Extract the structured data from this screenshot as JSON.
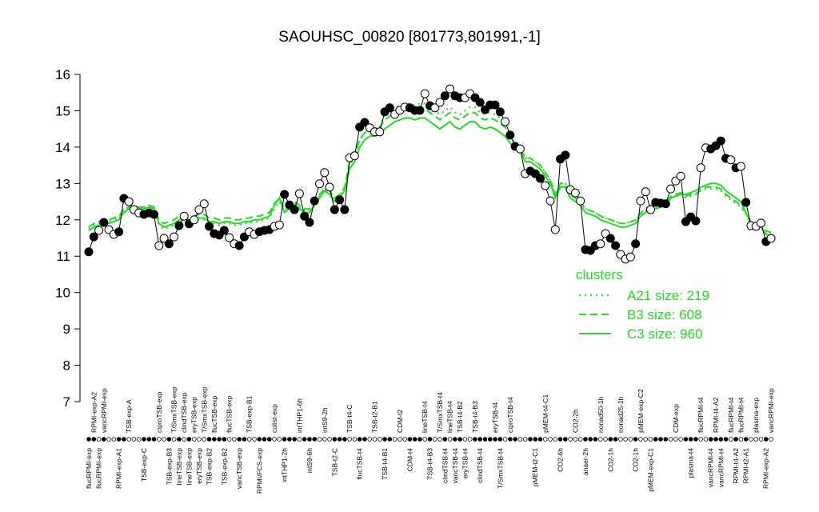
{
  "chart_data": {
    "type": "line",
    "title": "SAOUHSC_00820 [801773,801991,-1]",
    "ylim": [
      7,
      16
    ],
    "yticks": [
      7,
      8,
      9,
      10,
      11,
      12,
      13,
      14,
      15,
      16
    ],
    "legend": "right",
    "legend_title": "clusters",
    "legend_color": "#22dd22",
    "categories": [
      "flucRPMI-exp",
      "RPMI-exp-A2",
      "flucRPMI-exp",
      "vancRPMI-exp",
      null,
      null,
      "RPMI-exp-A1",
      null,
      "TSB-exp-A",
      null,
      null,
      "TSB-exp-C",
      null,
      null,
      "ciproTSB-exp",
      null,
      "TSB-exp-B3",
      "T/SmxTSB-exp",
      "lineTSB-exp",
      "clindTSB-exp",
      "lineTSB-exp",
      "eryTSB-exp",
      "eryTSB-exp",
      "T/SmxTSB-exp",
      "TSB-exp-B2",
      "flucTSB-exp",
      null,
      "TSB-exp-B2",
      "flucTSB-exp",
      null,
      "vancTSB-exp",
      null,
      "TSB-exp-B1",
      null,
      "RPMI/FCS-exp",
      null,
      null,
      "colist-exp",
      null,
      "intTHP1-2h",
      null,
      null,
      "intTHP1-6h",
      null,
      "intS9-6h",
      null,
      null,
      "intS9-2h",
      null,
      "TSB-t2-C",
      null,
      null,
      "TSB-t4-C",
      null,
      "flucTSB-t4",
      null,
      null,
      "TSB-t2-B1",
      null,
      "TSB-t4-B1",
      null,
      null,
      "CDM-t2",
      null,
      "CDM-t4",
      null,
      null,
      "lineTSB-t4",
      "TSB-t4-B3",
      null,
      "T/SmxTSB-t4",
      "clindTSB-t4",
      "lineTSB-t4",
      "vancTSB-t4",
      "TSB-t4-B2",
      "eryTSB-t4",
      null,
      "TSB-t4-B3",
      "clindTSB-t4",
      null,
      null,
      "eryTSB-t4",
      "T/SmxTSB-t4",
      null,
      "ciproTSB-t4",
      null,
      null,
      null,
      null,
      "pMEM-t2-C1",
      null,
      "pMEM-t4-C1",
      null,
      null,
      "CO2-6h",
      null,
      null,
      "CO2-2h",
      null,
      "anaer-2h",
      null,
      null,
      "nonad50-1h",
      null,
      "CO2-1h",
      null,
      "nonad25-1h",
      null,
      null,
      "CO2-1h",
      "pMEM-exp-C2",
      null,
      "pMEM-exp-C1",
      null,
      null,
      null,
      null,
      "CDM-exp",
      null,
      null,
      "plasma-t4",
      null,
      "flucRPMI-t4",
      null,
      "vancRPMI-t4",
      "RPMI-t4-A2",
      "vancRPMI-t4",
      null,
      "flucRPMI-t4",
      "RPMI-t4-A2",
      "flucRPMI-t4",
      "RPMI-t2-A1",
      null,
      "plasma-exp",
      null,
      "RPMI-exp-A2",
      "vancRPMI-exp"
    ],
    "series": [
      {
        "color": "#000000",
        "style": "points-line",
        "values": [
          11.12,
          11.53,
          11.71,
          11.93,
          11.73,
          11.6,
          11.67,
          12.59,
          12.5,
          12.28,
          12.19,
          12.15,
          12.19,
          12.15,
          11.29,
          11.49,
          11.34,
          11.53,
          11.84,
          12.1,
          11.89,
          12.0,
          12.28,
          12.44,
          11.82,
          11.62,
          11.58,
          11.71,
          11.51,
          11.34,
          11.29,
          11.53,
          11.67,
          11.6,
          11.67,
          11.71,
          11.73,
          11.82,
          11.86,
          12.7,
          12.41,
          12.28,
          12.72,
          12.1,
          11.93,
          12.52,
          12.99,
          13.3,
          12.9,
          12.28,
          12.55,
          12.28,
          13.71,
          13.76,
          14.55,
          14.68,
          14.53,
          14.42,
          14.42,
          14.97,
          15.08,
          14.9,
          15.01,
          15.1,
          15.08,
          15.01,
          15.01,
          15.47,
          15.14,
          15.08,
          15.23,
          15.41,
          15.6,
          15.41,
          15.36,
          15.36,
          15.47,
          15.36,
          15.23,
          15.03,
          15.16,
          15.16,
          14.97,
          14.7,
          14.33,
          14.02,
          13.95,
          13.27,
          13.34,
          13.27,
          13.14,
          12.94,
          12.52,
          11.73,
          13.67,
          13.78,
          12.83,
          12.74,
          12.52,
          11.18,
          11.16,
          11.29,
          11.34,
          11.62,
          11.49,
          11.29,
          11.05,
          10.92,
          10.98,
          11.34,
          12.52,
          12.77,
          12.28,
          12.48,
          12.46,
          12.44,
          12.85,
          13.07,
          13.2,
          11.95,
          12.08,
          11.97,
          13.43,
          13.98,
          13.95,
          14.04,
          14.17,
          13.69,
          13.65,
          13.43,
          13.47,
          12.48,
          11.84,
          11.82,
          11.91,
          11.4,
          11.49
        ],
        "filled": [
          1,
          1,
          0,
          1,
          0,
          0,
          1,
          1,
          0,
          0,
          0,
          1,
          1,
          1,
          0,
          0,
          1,
          0,
          1,
          0,
          1,
          0,
          0,
          0,
          1,
          1,
          1,
          1,
          0,
          0,
          1,
          1,
          0,
          0,
          1,
          1,
          1,
          0,
          0,
          1,
          1,
          1,
          0,
          1,
          1,
          1,
          0,
          0,
          0,
          1,
          1,
          1,
          0,
          0,
          1,
          1,
          0,
          0,
          0,
          1,
          1,
          0,
          0,
          0,
          1,
          1,
          1,
          0,
          1,
          0,
          0,
          1,
          0,
          1,
          1,
          0,
          0,
          1,
          1,
          1,
          1,
          1,
          1,
          0,
          1,
          1,
          0,
          0,
          1,
          1,
          1,
          0,
          0,
          0,
          1,
          1,
          0,
          0,
          0,
          1,
          1,
          1,
          0,
          0,
          1,
          1,
          0,
          0,
          0,
          1,
          0,
          0,
          0,
          1,
          1,
          1,
          0,
          0,
          0,
          1,
          1,
          1,
          0,
          0,
          1,
          1,
          1,
          1,
          0,
          1,
          0,
          1,
          0,
          0,
          0,
          1,
          0
        ]
      },
      {
        "name": "A21 size: 219",
        "color": "#22dd22",
        "style": "dotted",
        "values": [
          11.75,
          11.85,
          11.9,
          11.95,
          11.95,
          12.0,
          12.05,
          12.25,
          12.35,
          12.35,
          12.35,
          12.35,
          12.4,
          12.35,
          11.85,
          11.75,
          11.8,
          11.85,
          11.95,
          12.0,
          11.95,
          11.95,
          12.0,
          12.0,
          11.9,
          11.9,
          11.85,
          11.9,
          11.9,
          11.85,
          11.85,
          11.9,
          11.9,
          11.95,
          11.95,
          12.0,
          12.05,
          12.3,
          12.5,
          12.25,
          12.35,
          12.45,
          12.35,
          12.25,
          12.25,
          12.45,
          12.65,
          12.85,
          12.75,
          12.55,
          12.65,
          12.85,
          13.5,
          13.7,
          14.2,
          14.4,
          14.5,
          14.5,
          14.55,
          14.9,
          15.0,
          15.1,
          15.15,
          15.2,
          15.2,
          15.15,
          15.2,
          15.2,
          15.1,
          15.0,
          14.9,
          15.0,
          15.1,
          14.95,
          14.9,
          15.0,
          15.1,
          15.1,
          14.95,
          14.9,
          14.95,
          14.9,
          14.8,
          14.65,
          14.35,
          14.1,
          14.0,
          13.7,
          13.7,
          13.6,
          13.5,
          13.3,
          13.1,
          12.7,
          13.0,
          13.0,
          12.7,
          12.6,
          12.5,
          12.3,
          12.25,
          12.2,
          12.1,
          12.05,
          12.0,
          11.95,
          11.9,
          11.9,
          11.95,
          12.0,
          12.15,
          12.25,
          12.35,
          12.35,
          12.4,
          12.45,
          12.6,
          12.65,
          12.7,
          12.6,
          12.65,
          12.7,
          12.8,
          12.85,
          12.85,
          12.85,
          12.8,
          12.65,
          12.55,
          12.45,
          12.35,
          12.15,
          11.9,
          11.85,
          11.8,
          11.65,
          11.6
        ]
      },
      {
        "name": "B3 size: 608",
        "color": "#22dd22",
        "style": "dashed",
        "values": [
          11.8,
          11.9,
          11.95,
          12.0,
          12.0,
          12.05,
          12.1,
          12.3,
          12.35,
          12.35,
          12.35,
          12.35,
          12.4,
          12.35,
          12.0,
          11.9,
          11.95,
          12.0,
          12.1,
          12.15,
          12.1,
          12.1,
          12.15,
          12.15,
          12.05,
          12.05,
          12.0,
          12.05,
          12.05,
          12.0,
          12.0,
          12.05,
          12.05,
          12.1,
          12.1,
          12.15,
          12.2,
          12.45,
          12.6,
          12.3,
          12.4,
          12.5,
          12.4,
          12.3,
          12.3,
          12.5,
          12.7,
          12.85,
          12.8,
          12.6,
          12.7,
          12.9,
          13.6,
          13.8,
          14.2,
          14.4,
          14.5,
          14.5,
          14.55,
          14.75,
          14.85,
          14.95,
          15.0,
          15.05,
          15.05,
          15.0,
          15.05,
          15.05,
          14.95,
          14.85,
          14.75,
          14.85,
          14.95,
          14.8,
          14.75,
          14.85,
          14.95,
          14.95,
          14.8,
          14.75,
          14.8,
          14.75,
          14.65,
          14.55,
          14.3,
          14.1,
          14.0,
          13.7,
          13.7,
          13.6,
          13.5,
          13.3,
          13.1,
          12.7,
          13.0,
          13.0,
          12.7,
          12.6,
          12.5,
          12.3,
          12.25,
          12.2,
          12.1,
          12.05,
          12.0,
          11.95,
          11.9,
          11.9,
          11.95,
          12.0,
          12.2,
          12.3,
          12.4,
          12.4,
          12.45,
          12.5,
          12.65,
          12.7,
          12.75,
          12.65,
          12.7,
          12.7,
          12.85,
          12.9,
          12.9,
          12.9,
          12.85,
          12.7,
          12.6,
          12.5,
          12.4,
          12.2,
          11.95,
          11.9,
          11.85,
          11.7,
          11.65
        ]
      },
      {
        "name": "C3 size: 960",
        "color": "#22dd22",
        "style": "solid",
        "values": [
          11.7,
          11.8,
          11.85,
          11.9,
          11.9,
          11.95,
          12.0,
          12.2,
          12.3,
          12.3,
          12.3,
          12.3,
          12.35,
          12.3,
          11.9,
          11.8,
          11.85,
          11.9,
          12.0,
          12.05,
          12.0,
          12.0,
          12.05,
          12.05,
          11.95,
          11.95,
          11.9,
          11.95,
          11.95,
          11.9,
          11.9,
          11.95,
          11.95,
          12.0,
          12.0,
          12.05,
          12.1,
          12.4,
          12.6,
          12.2,
          12.3,
          12.4,
          12.3,
          12.2,
          12.2,
          12.4,
          12.6,
          12.8,
          12.7,
          12.5,
          12.6,
          12.8,
          13.4,
          13.6,
          14.0,
          14.2,
          14.3,
          14.3,
          14.35,
          14.5,
          14.6,
          14.7,
          14.75,
          14.8,
          14.8,
          14.75,
          14.8,
          14.8,
          14.7,
          14.6,
          14.5,
          14.6,
          14.7,
          14.55,
          14.5,
          14.6,
          14.7,
          14.7,
          14.55,
          14.5,
          14.55,
          14.5,
          14.4,
          14.3,
          14.1,
          13.95,
          13.9,
          13.6,
          13.6,
          13.5,
          13.4,
          13.2,
          13.0,
          12.6,
          12.9,
          12.9,
          12.6,
          12.5,
          12.4,
          12.2,
          12.15,
          12.1,
          12.0,
          11.95,
          11.9,
          11.85,
          11.8,
          11.8,
          11.85,
          11.9,
          12.1,
          12.2,
          12.3,
          12.3,
          12.35,
          12.4,
          12.6,
          12.65,
          12.7,
          12.7,
          12.75,
          12.8,
          12.9,
          12.95,
          13.0,
          13.0,
          12.95,
          12.8,
          12.7,
          12.6,
          12.5,
          12.2,
          11.9,
          11.85,
          11.8,
          11.6,
          11.55
        ]
      }
    ]
  }
}
